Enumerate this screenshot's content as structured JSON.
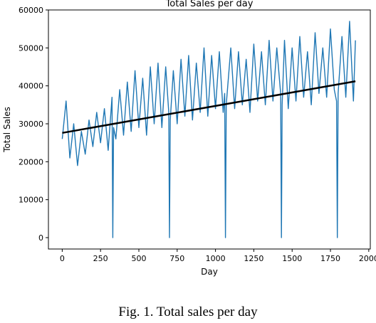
{
  "chart_data": {
    "type": "line",
    "title": "Total Sales per day",
    "xlabel": "Day",
    "ylabel": "Total Sales",
    "xlim": [
      -90,
      2010
    ],
    "ylim": [
      -3000,
      60000
    ],
    "x_ticks": [
      0,
      250,
      500,
      750,
      1000,
      1250,
      1500,
      1750,
      2000
    ],
    "x_tick_labels": [
      "0",
      "250",
      "500",
      "750",
      "1000",
      "1250",
      "1500",
      "1750",
      "2000"
    ],
    "y_ticks": [
      0,
      10000,
      20000,
      30000,
      40000,
      50000,
      60000
    ],
    "y_tick_labels": [
      "0",
      "10000",
      "20000",
      "30000",
      "40000",
      "50000",
      "60000"
    ],
    "grid": false,
    "legend": "none",
    "series": [
      {
        "color": "#1f77b4",
        "x": [
          0,
          25,
          50,
          75,
          100,
          125,
          150,
          175,
          200,
          225,
          250,
          275,
          300,
          325,
          330,
          335,
          350,
          375,
          400,
          425,
          450,
          475,
          500,
          525,
          550,
          575,
          600,
          625,
          650,
          675,
          695,
          700,
          705,
          725,
          750,
          775,
          800,
          825,
          850,
          875,
          900,
          925,
          950,
          975,
          1000,
          1025,
          1050,
          1060,
          1065,
          1070,
          1100,
          1125,
          1150,
          1175,
          1200,
          1225,
          1250,
          1275,
          1300,
          1325,
          1350,
          1375,
          1400,
          1425,
          1430,
          1435,
          1450,
          1475,
          1500,
          1525,
          1550,
          1575,
          1600,
          1625,
          1650,
          1675,
          1700,
          1725,
          1750,
          1775,
          1790,
          1795,
          1800,
          1825,
          1850,
          1875,
          1900,
          1913
        ],
        "y": [
          26000,
          36000,
          21000,
          30000,
          19000,
          28000,
          22000,
          31000,
          24000,
          33000,
          25000,
          34000,
          23000,
          37000,
          0,
          29000,
          26000,
          39000,
          27000,
          41000,
          28000,
          44000,
          29000,
          42000,
          27000,
          45000,
          30000,
          46000,
          29000,
          45000,
          33000,
          0,
          31000,
          44000,
          30000,
          47000,
          32000,
          48000,
          31000,
          46000,
          33000,
          50000,
          32000,
          48000,
          34000,
          49000,
          33000,
          38000,
          0,
          35000,
          50000,
          34000,
          49000,
          35000,
          47000,
          33000,
          51000,
          36000,
          49000,
          35000,
          52000,
          36000,
          50000,
          38000,
          0,
          35000,
          52000,
          34000,
          50000,
          36000,
          53000,
          37000,
          49000,
          35000,
          54000,
          38000,
          50000,
          37000,
          55000,
          39000,
          36000,
          0,
          38000,
          53000,
          37000,
          57000,
          36000,
          52000
        ]
      }
    ],
    "trend_line": {
      "color": "#000000",
      "x": [
        0,
        1913
      ],
      "y": [
        27600,
        41200
      ]
    }
  },
  "caption": "Fig. 1.   Total sales per day"
}
